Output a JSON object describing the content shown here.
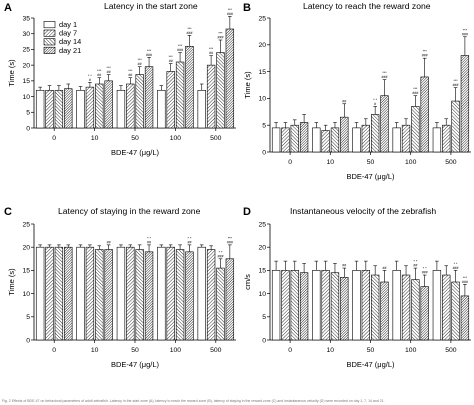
{
  "legend": [
    "day 1",
    "day 7",
    "day 14",
    "day 21"
  ],
  "caption": "Fig. 2 Effects of BDE-47 on behavioral parameters of adult zebrafish. Latency in the start zone (A), latency to reach the reward zone (B), latency of staying in the reward zone (C) and instantaneous velocity (D) were recorded on day 1, 7, 14 and 21.",
  "chart_data": [
    {
      "letter": "A",
      "type": "bar",
      "title": "Latency in the start zone",
      "xlabel": "BDE-47 (μg/L)",
      "ylabel": "Time (s)",
      "ylim": [
        0,
        35
      ],
      "yticks": [
        0,
        5,
        10,
        15,
        20,
        25,
        30,
        35
      ],
      "categories": [
        "0",
        "10",
        "50",
        "100",
        "500"
      ],
      "series": [
        {
          "name": "day 1",
          "values": [
            12,
            12,
            12,
            12,
            12
          ],
          "errors": [
            1,
            1.2,
            1.5,
            1.5,
            2
          ]
        },
        {
          "name": "day 7",
          "values": [
            12,
            13,
            14,
            18,
            20
          ],
          "errors": [
            1.5,
            1.5,
            2,
            2.5,
            3
          ]
        },
        {
          "name": "day 14",
          "values": [
            12,
            14,
            17,
            21,
            24
          ],
          "errors": [
            1.5,
            2,
            2.5,
            3,
            4
          ]
        },
        {
          "name": "day 21",
          "values": [
            12.5,
            15,
            19.5,
            26,
            31.5
          ],
          "errors": [
            1.5,
            2,
            3,
            3.5,
            4
          ]
        }
      ],
      "annotations": [
        [
          "",
          "",
          "",
          ""
        ],
        [
          "",
          "* *\n#",
          "***\n##",
          "***\n##"
        ],
        [
          "",
          "***\n##",
          "***\n##",
          "***\n###"
        ],
        [
          "",
          "***\n##",
          "***\n###",
          "***\n###"
        ],
        [
          "",
          "***\n##",
          "***\n###",
          "***\n###"
        ]
      ]
    },
    {
      "letter": "B",
      "type": "bar",
      "title": "Latency to reach the reward zone",
      "xlabel": "BDE-47 (μg/L)",
      "ylabel": "Time (s)",
      "ylim": [
        0,
        25
      ],
      "yticks": [
        0,
        5,
        10,
        15,
        20,
        25
      ],
      "categories": [
        "0",
        "10",
        "50",
        "100",
        "500"
      ],
      "series": [
        {
          "name": "day 1",
          "values": [
            4.5,
            4.5,
            4.5,
            4.5,
            4.5
          ],
          "errors": [
            1,
            1,
            1,
            1,
            1
          ]
        },
        {
          "name": "day 7",
          "values": [
            4.5,
            4,
            5,
            5,
            5
          ],
          "errors": [
            1,
            1,
            1.2,
            1.2,
            1.2
          ]
        },
        {
          "name": "day 14",
          "values": [
            5,
            4.5,
            7,
            8.5,
            9.5
          ],
          "errors": [
            1,
            1,
            1.5,
            2,
            2.5
          ]
        },
        {
          "name": "day 21",
          "values": [
            5.5,
            6.5,
            10.5,
            14,
            18
          ],
          "errors": [
            1.5,
            2.5,
            3,
            3.5,
            3.5
          ]
        }
      ],
      "annotations": [
        [
          "",
          "",
          "",
          ""
        ],
        [
          "",
          "",
          "",
          "##"
        ],
        [
          "",
          "",
          "* *\n#",
          "***\n###"
        ],
        [
          "",
          "",
          "***\n###",
          "***\n###"
        ],
        [
          "",
          "",
          "***\n###",
          "***\n###"
        ]
      ]
    },
    {
      "letter": "C",
      "type": "bar",
      "title": "Latency of staying in the reward zone",
      "xlabel": "BDE-47 (μg/L)",
      "ylabel": "Time (s)",
      "ylim": [
        0,
        25
      ],
      "yticks": [
        0,
        5,
        10,
        15,
        20,
        25
      ],
      "categories": [
        "0",
        "10",
        "50",
        "100",
        "500"
      ],
      "series": [
        {
          "name": "day 1",
          "values": [
            20,
            20,
            20,
            20,
            20
          ],
          "errors": [
            0.5,
            0.5,
            0.5,
            0.5,
            0.5
          ]
        },
        {
          "name": "day 7",
          "values": [
            20,
            20,
            20,
            20,
            19.5
          ],
          "errors": [
            0.5,
            0.5,
            0.5,
            0.5,
            0.8
          ]
        },
        {
          "name": "day 14",
          "values": [
            20,
            19.5,
            19.5,
            19.5,
            15.5
          ],
          "errors": [
            0.5,
            0.8,
            1,
            1,
            2
          ]
        },
        {
          "name": "day 21",
          "values": [
            20,
            19.5,
            19,
            19,
            17.5
          ],
          "errors": [
            0.5,
            1,
            1.5,
            1.5,
            3
          ]
        }
      ],
      "annotations": [
        [
          "",
          "",
          "",
          ""
        ],
        [
          "",
          "",
          "",
          "##"
        ],
        [
          "",
          "",
          "",
          "* *\n##"
        ],
        [
          "",
          "",
          "",
          "* *\n##"
        ],
        [
          "",
          "",
          "* *\n###",
          "***\n###"
        ]
      ]
    },
    {
      "letter": "D",
      "type": "bar",
      "title": "Instantaneous velocity of the zebrafish",
      "xlabel": "BDE-47 (μg/L)",
      "ylabel": "cm/s",
      "ylim": [
        0,
        25
      ],
      "yticks": [
        0,
        5,
        10,
        15,
        20,
        25
      ],
      "categories": [
        "0",
        "10",
        "50",
        "100",
        "500"
      ],
      "series": [
        {
          "name": "day 1",
          "values": [
            15,
            15,
            15,
            15,
            15
          ],
          "errors": [
            2,
            2,
            2,
            2,
            2
          ]
        },
        {
          "name": "day 7",
          "values": [
            15,
            15,
            15,
            14,
            14
          ],
          "errors": [
            2,
            2,
            2,
            2,
            2
          ]
        },
        {
          "name": "day 14",
          "values": [
            15,
            14.5,
            14,
            13,
            12.5
          ],
          "errors": [
            2,
            2,
            2,
            2.5,
            2.5
          ]
        },
        {
          "name": "day 21",
          "values": [
            14.5,
            13.5,
            12.5,
            11.5,
            9.5
          ],
          "errors": [
            2,
            2,
            2.5,
            2.5,
            2.5
          ]
        }
      ],
      "annotations": [
        [
          "",
          "",
          "",
          ""
        ],
        [
          "",
          "",
          "",
          "##"
        ],
        [
          "",
          "",
          "",
          "##"
        ],
        [
          "",
          "",
          "* *\n##",
          "* *\n###"
        ],
        [
          "",
          "",
          "* *\n###",
          "***\n###"
        ]
      ]
    }
  ]
}
